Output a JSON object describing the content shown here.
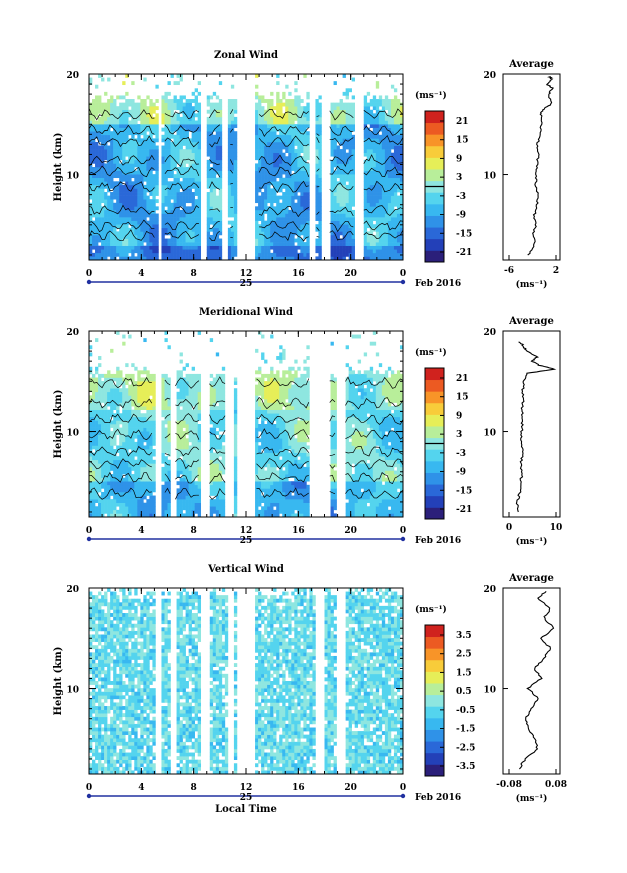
{
  "figure": {
    "x_label": "Local Time",
    "date_label": "Feb 2016",
    "day_label": "25",
    "x_ticks": [
      "0",
      "4",
      "8",
      "12",
      "16",
      "20",
      "0"
    ],
    "y_label": "Height (km)",
    "y_ticks": [
      "10",
      "20"
    ],
    "avg_title": "Average",
    "unit": "(ms⁻¹)"
  },
  "colormap": [
    "#2b1f7a",
    "#2340b8",
    "#2a68d8",
    "#2f92e8",
    "#38b8f0",
    "#54d4ee",
    "#8ee6e0",
    "#b8ee9a",
    "#e6ee58",
    "#f8cc3a",
    "#f89428",
    "#ec5a22",
    "#d0221e"
  ],
  "chart_data": [
    {
      "type": "heatmap",
      "title": "Zonal Wind",
      "xlim": [
        0,
        24
      ],
      "ylim": [
        1.5,
        20
      ],
      "cbar_ticks": [
        "21",
        "15",
        "9",
        "3",
        "-3",
        "-9",
        "-15",
        "-21"
      ],
      "cbar_range": [
        -24,
        24
      ],
      "zero_line": true,
      "gaps": [
        [
          5.2,
          5.6
        ],
        [
          8.5,
          9.0
        ],
        [
          10.2,
          10.7
        ],
        [
          11.2,
          12.8
        ],
        [
          16.9,
          17.3
        ],
        [
          17.8,
          18.4
        ],
        [
          20.4,
          20.9
        ]
      ],
      "data_top_km": 17.5,
      "profile": [
        [
          -2,
          2
        ],
        [
          -1,
          3
        ],
        [
          -1.2,
          4
        ],
        [
          -0.8,
          5
        ],
        [
          -1,
          6
        ],
        [
          -0.5,
          7
        ],
        [
          -0.4,
          8
        ],
        [
          -0.7,
          9
        ],
        [
          -0.8,
          10
        ],
        [
          -0.5,
          11
        ],
        [
          -0.3,
          12
        ],
        [
          -0.4,
          13
        ],
        [
          -0.1,
          14
        ],
        [
          0.3,
          15
        ],
        [
          0.1,
          16
        ],
        [
          0.6,
          16.5
        ],
        [
          2,
          17
        ],
        [
          1.5,
          18
        ],
        [
          2.2,
          18.6
        ],
        [
          1.2,
          19
        ],
        [
          2,
          19.5
        ],
        [
          1.6,
          19.8
        ]
      ],
      "profile_xlim": [
        -6.5,
        3.5
      ],
      "profile_ticks": [
        "-6",
        "2"
      ]
    },
    {
      "type": "heatmap",
      "title": "Meridional Wind",
      "xlim": [
        0,
        24
      ],
      "ylim": [
        1.5,
        20
      ],
      "cbar_ticks": [
        "21",
        "15",
        "9",
        "3",
        "-3",
        "-9",
        "-15",
        "-21"
      ],
      "cbar_range": [
        -24,
        24
      ],
      "zero_line": true,
      "gaps": [
        [
          5.0,
          5.6
        ],
        [
          6.3,
          6.6
        ],
        [
          8.6,
          9.2
        ],
        [
          10.5,
          11.0
        ],
        [
          11.3,
          12.7
        ],
        [
          16.8,
          18.4
        ],
        [
          19.0,
          19.5
        ]
      ],
      "data_top_km": 15.8,
      "profile": [
        [
          -1,
          2
        ],
        [
          -1.5,
          3
        ],
        [
          -0.5,
          4
        ],
        [
          0,
          5
        ],
        [
          0.2,
          6
        ],
        [
          0.1,
          7
        ],
        [
          0.5,
          8
        ],
        [
          0.2,
          9
        ],
        [
          0.3,
          10
        ],
        [
          0.5,
          11
        ],
        [
          0.4,
          12
        ],
        [
          0.7,
          13
        ],
        [
          0.6,
          14
        ],
        [
          1,
          15
        ],
        [
          2,
          15.8
        ],
        [
          13,
          16.2
        ],
        [
          7,
          16.6
        ],
        [
          4,
          17
        ],
        [
          6,
          17.4
        ],
        [
          2,
          18
        ],
        [
          1,
          18.5
        ],
        [
          -1,
          19
        ]
      ],
      "profile_xlim": [
        -7,
        15
      ],
      "profile_ticks": [
        "0",
        "10"
      ]
    },
    {
      "type": "heatmap",
      "title": "Vertical Wind",
      "xlim": [
        0,
        24
      ],
      "ylim": [
        1.5,
        20
      ],
      "cbar_ticks": [
        "3.5",
        "2.5",
        "1.5",
        "0.5",
        "-0.5",
        "-1.5",
        "-2.5",
        "-3.5"
      ],
      "cbar_range": [
        -4,
        4
      ],
      "zero_line": false,
      "gaps": [
        [
          5.0,
          5.6
        ],
        [
          6.3,
          6.6
        ],
        [
          8.6,
          9.2
        ],
        [
          10.6,
          11.0
        ],
        [
          11.3,
          12.7
        ],
        [
          17.4,
          18.0
        ],
        [
          19.0,
          19.5
        ]
      ],
      "data_top_km": 19.5,
      "profile": [
        [
          -0.04,
          2
        ],
        [
          -0.02,
          3
        ],
        [
          0.02,
          4
        ],
        [
          0.01,
          5
        ],
        [
          -0.01,
          6
        ],
        [
          -0.02,
          7
        ],
        [
          0.0,
          8
        ],
        [
          0.02,
          9
        ],
        [
          -0.01,
          10
        ],
        [
          0.03,
          11
        ],
        [
          0.01,
          12
        ],
        [
          0.04,
          13
        ],
        [
          0.06,
          14
        ],
        [
          0.03,
          15
        ],
        [
          0.07,
          16
        ],
        [
          0.04,
          17
        ],
        [
          0.06,
          18
        ],
        [
          0.02,
          19
        ],
        [
          0.05,
          19.8
        ]
      ],
      "profile_xlim": [
        -0.09,
        0.09
      ],
      "profile_ticks": [
        "-0.08",
        "0.08"
      ]
    }
  ]
}
